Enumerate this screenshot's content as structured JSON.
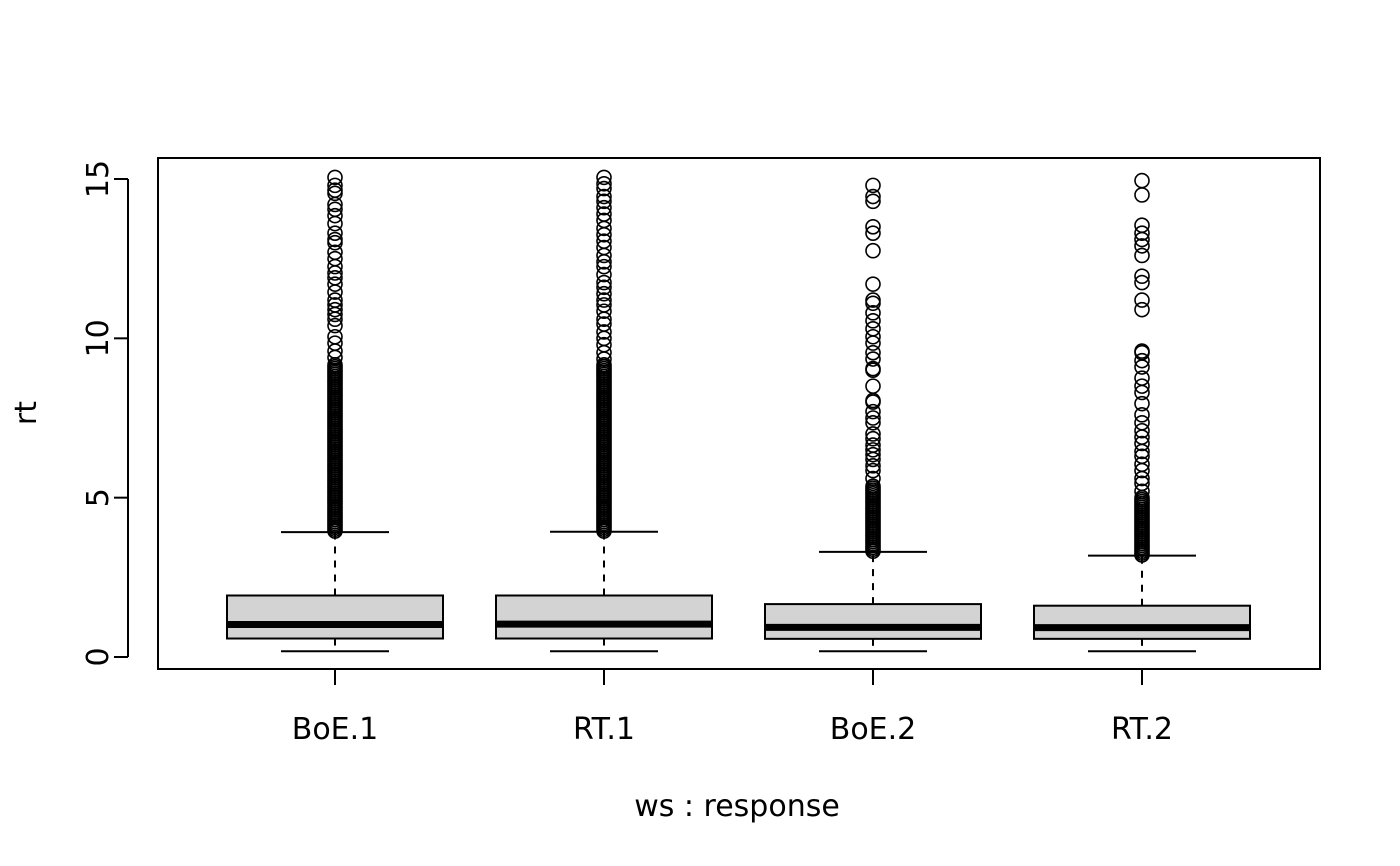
{
  "chart_data": {
    "type": "boxplot",
    "title": "",
    "xlabel": "ws : response",
    "ylabel": "rt",
    "ylim": [
      -0.4,
      15.65
    ],
    "y_ticks": [
      0,
      5,
      10,
      15
    ],
    "y_tick_labels": [
      "0",
      "5",
      "10",
      "15"
    ],
    "grid": false,
    "legend": "none",
    "colors": {
      "box_fill": "#d3d3d3",
      "stroke": "#000000",
      "background": "#ffffff"
    },
    "categories": [
      "BoE.1",
      "RT.1",
      "BoE.2",
      "RT.2"
    ],
    "boxes": [
      {
        "name": "BoE.1",
        "whisker_low": 0.18,
        "q1": 0.58,
        "median": 1.02,
        "q3": 1.93,
        "whisker_high": 3.92,
        "outliers_dense_range": [
          3.95,
          9.2
        ],
        "outliers": [
          9.4,
          9.6,
          9.85,
          10.05,
          10.4,
          10.6,
          10.75,
          10.9,
          11.05,
          11.2,
          11.45,
          11.7,
          11.9,
          12.05,
          12.25,
          12.5,
          12.7,
          13.0,
          13.1,
          13.3,
          13.6,
          13.85,
          14.05,
          14.2,
          14.55,
          14.65,
          14.8,
          15.05
        ]
      },
      {
        "name": "RT.1",
        "whisker_low": 0.18,
        "q1": 0.58,
        "median": 1.03,
        "q3": 1.93,
        "whisker_high": 3.93,
        "outliers_dense_range": [
          3.95,
          9.2
        ],
        "outliers": [
          9.35,
          9.55,
          9.8,
          10.0,
          10.2,
          10.45,
          10.6,
          10.85,
          11.05,
          11.2,
          11.4,
          11.6,
          11.75,
          12.0,
          12.25,
          12.4,
          12.6,
          12.85,
          13.05,
          13.25,
          13.45,
          13.7,
          13.9,
          14.1,
          14.3,
          14.45,
          14.7,
          14.85,
          15.05
        ]
      },
      {
        "name": "BoE.2",
        "whisker_low": 0.18,
        "q1": 0.57,
        "median": 0.93,
        "q3": 1.66,
        "whisker_high": 3.3,
        "outliers_dense_range": [
          3.32,
          5.4
        ],
        "outliers": [
          5.6,
          5.85,
          6.0,
          6.2,
          6.35,
          6.5,
          6.65,
          6.85,
          7.0,
          7.35,
          7.5,
          7.7,
          8.0,
          8.05,
          8.5,
          9.0,
          9.05,
          9.35,
          9.55,
          9.85,
          10.05,
          10.3,
          10.55,
          10.8,
          11.1,
          11.2,
          11.7,
          12.75,
          13.3,
          13.5,
          14.3,
          14.45,
          14.8
        ]
      },
      {
        "name": "RT.2",
        "whisker_low": 0.18,
        "q1": 0.57,
        "median": 0.92,
        "q3": 1.61,
        "whisker_high": 3.18,
        "outliers_dense_range": [
          3.2,
          5.0
        ],
        "outliers": [
          5.2,
          5.45,
          5.6,
          5.85,
          6.05,
          6.3,
          6.45,
          6.7,
          6.9,
          7.1,
          7.35,
          7.6,
          7.95,
          8.3,
          8.5,
          8.75,
          9.1,
          9.3,
          9.55,
          9.6,
          10.9,
          11.2,
          11.75,
          11.95,
          12.6,
          12.9,
          13.1,
          13.3,
          13.55,
          14.5,
          14.95
        ]
      }
    ]
  }
}
